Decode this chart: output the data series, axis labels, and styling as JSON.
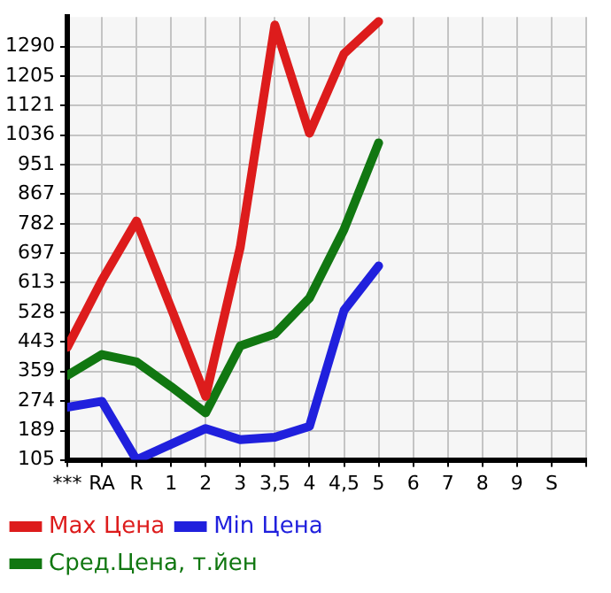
{
  "chart_data": {
    "type": "line",
    "categories": [
      "***",
      "RA",
      "R",
      "1",
      "2",
      "3",
      "3,5",
      "4",
      "4,5",
      "5",
      "6",
      "7",
      "8",
      "9",
      "S"
    ],
    "series": [
      {
        "name": "Max Цена",
        "color": "#dd1c1c",
        "values": [
          428,
          620,
          790,
          540,
          287,
          715,
          1352,
          1042,
          1270,
          1362,
          null,
          null,
          null,
          null,
          null
        ]
      },
      {
        "name": "Min Цена",
        "color": "#2020dd",
        "values": [
          256,
          273,
          105,
          150,
          195,
          163,
          170,
          201,
          534,
          661,
          null,
          null,
          null,
          null,
          null
        ]
      },
      {
        "name": "Сред.Цена, т.йен",
        "color": "#117711",
        "values": [
          347,
          407,
          386,
          315,
          240,
          432,
          466,
          569,
          766,
          1014,
          null,
          null,
          null,
          null,
          null
        ]
      }
    ],
    "ylim": [
      105,
      1375
    ],
    "yticks": [
      105,
      189,
      274,
      359,
      443,
      528,
      613,
      697,
      782,
      867,
      951,
      1036,
      1121,
      1205,
      1290
    ],
    "grid": true,
    "legend": "bottom",
    "marker": "none",
    "line_style": "solid"
  }
}
